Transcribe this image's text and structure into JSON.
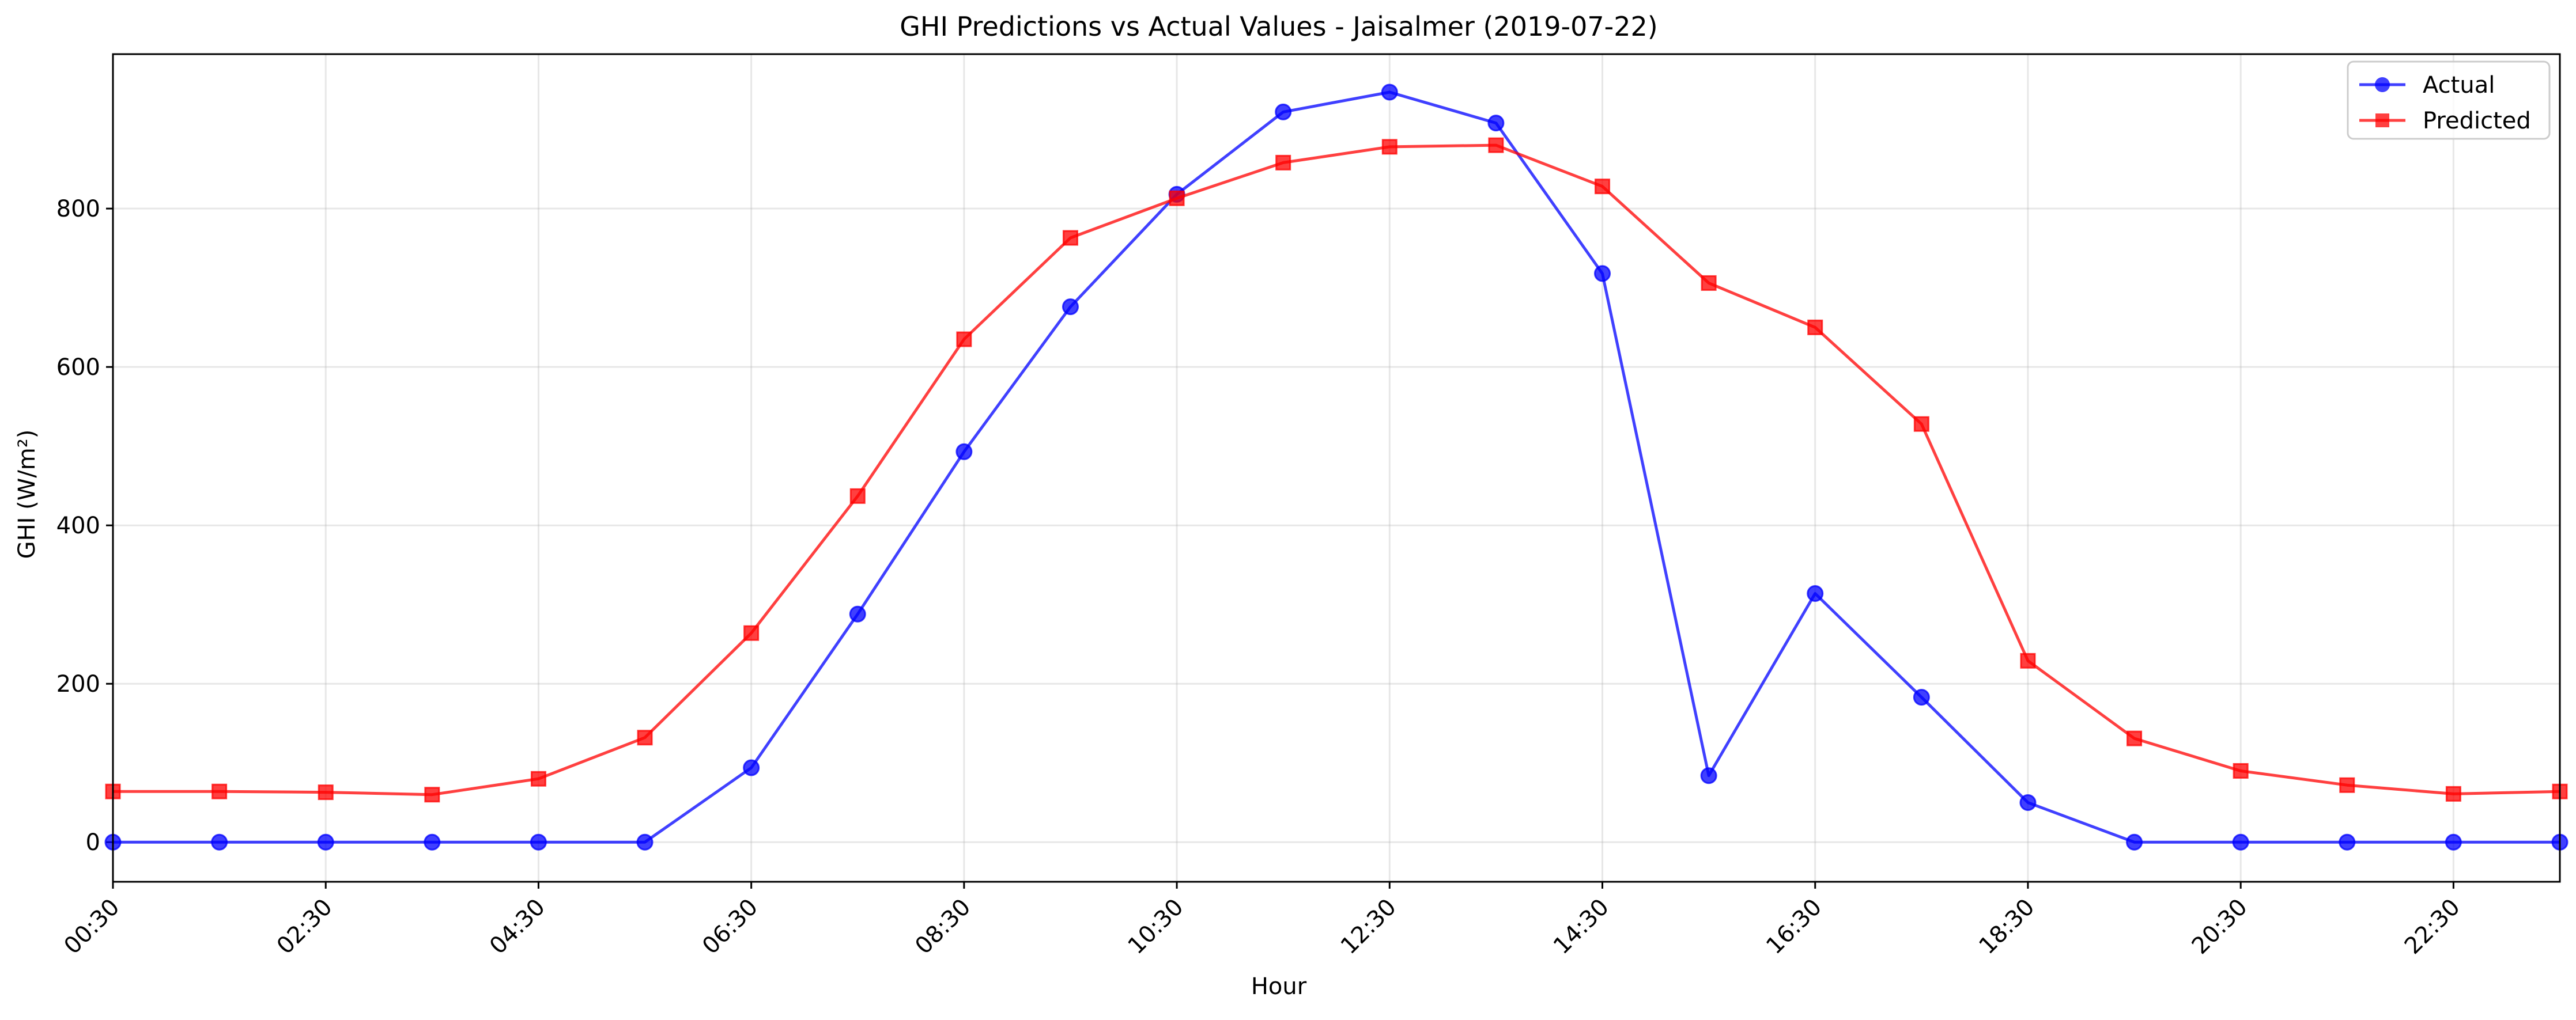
{
  "chart_data": {
    "type": "line",
    "title": "GHI Predictions vs Actual Values - Jaisalmer (2019-07-22)",
    "xlabel": "Hour",
    "ylabel": "GHI (W/m²)",
    "x": [
      "00:30",
      "01:30",
      "02:30",
      "03:30",
      "04:30",
      "05:30",
      "06:30",
      "07:30",
      "08:30",
      "09:30",
      "10:30",
      "11:30",
      "12:30",
      "13:30",
      "14:30",
      "15:30",
      "16:30",
      "17:30",
      "18:30",
      "19:30",
      "20:30",
      "21:30",
      "22:30",
      "23:30"
    ],
    "x_tick_labels": [
      "00:30",
      "02:30",
      "04:30",
      "06:30",
      "08:30",
      "10:30",
      "12:30",
      "14:30",
      "16:30",
      "18:30",
      "20:30",
      "22:30"
    ],
    "y_ticks": [
      0,
      200,
      400,
      600,
      800
    ],
    "ylim": [
      -50,
      995
    ],
    "grid": true,
    "legend_position": "top-right",
    "series": [
      {
        "name": "Actual",
        "color": "#0000ff",
        "marker": "circle",
        "values": [
          0,
          0,
          0,
          0,
          0,
          0,
          94,
          288,
          493,
          676,
          818,
          922,
          947,
          908,
          718,
          84,
          314,
          183,
          50,
          0,
          0,
          0,
          0,
          0
        ]
      },
      {
        "name": "Predicted",
        "color": "#ff0000",
        "marker": "square",
        "values": [
          64,
          64,
          63,
          60,
          80,
          132,
          264,
          437,
          635,
          763,
          813,
          858,
          878,
          880,
          828,
          706,
          650,
          528,
          229,
          131,
          90,
          72,
          61,
          64
        ]
      }
    ]
  }
}
